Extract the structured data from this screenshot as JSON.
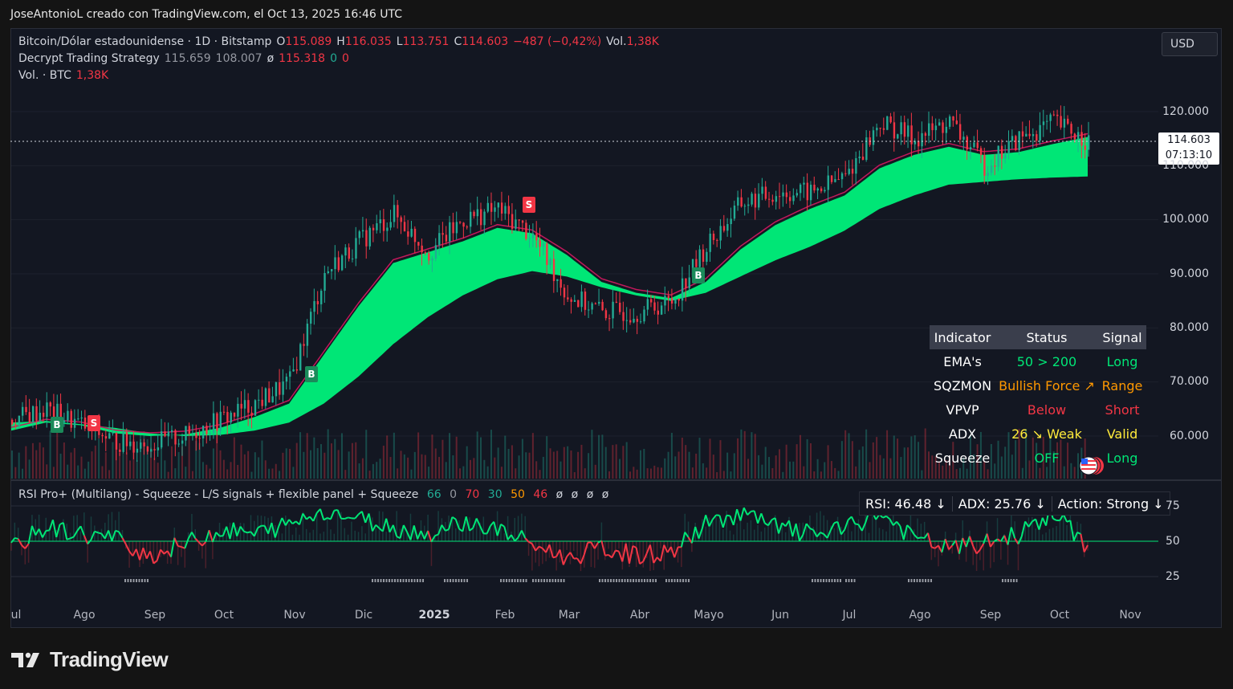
{
  "header": {
    "credit": "JoseAntonioL creado con TradingView.com, el Oct 13, 2025 16:46 UTC"
  },
  "legend": {
    "symbol": "Bitcoin/Dólar estadounidense · 1D · Bitstamp",
    "o_label": "O",
    "o_value": "115.089",
    "h_label": "H",
    "h_value": "116.035",
    "l_label": "L",
    "l_value": "113.751",
    "c_label": "C",
    "c_value": "114.603",
    "change": "−487 (−0,42%)",
    "vol_label": "Vol.",
    "vol_value": "1,38K",
    "strategy_name": "Decrypt Trading Strategy",
    "strategy_v1": "115.659",
    "strategy_v2": "108.007",
    "strategy_v3": "ø",
    "strategy_v4": "115.318",
    "strategy_v5": "0",
    "strategy_v6": "0",
    "volume_name": "Vol. · BTC",
    "volume_value": "1,38K"
  },
  "currency": "USD",
  "price_tag": {
    "price": "114.603",
    "countdown": "07:13:10"
  },
  "colors": {
    "up": "#22ab94",
    "down": "#f23645",
    "ema_fill": "#00e676",
    "ema_slow": "#c2185b",
    "background": "#131722"
  },
  "signal_panel": {
    "headers": [
      "Indicator",
      "Status",
      "Signal"
    ],
    "rows": [
      {
        "indicator": "EMA's",
        "status": "50 > 200",
        "signal": "Long",
        "status_color": "#00e676",
        "signal_color": "#00e676"
      },
      {
        "indicator": "SQZMON",
        "status": "Bullish Force ↗",
        "signal": "Range",
        "status_color": "#ff9800",
        "signal_color": "#ff9800"
      },
      {
        "indicator": "VPVP",
        "status": "Below",
        "signal": "Short",
        "status_color": "#f23645",
        "signal_color": "#f23645"
      },
      {
        "indicator": "ADX",
        "status": "26 ↘ Weak",
        "signal": "Valid",
        "status_color": "#ffeb3b",
        "signal_color": "#ffeb3b"
      },
      {
        "indicator": "Squeeze",
        "status": "OFF",
        "signal": "Long",
        "status_color": "#00e676",
        "signal_color": "#00e676"
      }
    ]
  },
  "rsi_panel": {
    "legend": "RSI Pro+ (Multilang) - Squeeze - L/S signals + flexible panel + Squeeze",
    "legend_values": [
      "66",
      "0",
      "70",
      "30",
      "50",
      "46",
      "ø",
      "ø",
      "ø",
      "ø"
    ],
    "rsi": "RSI: 46.48 ↓",
    "adx": "ADX: 25.76 ↓",
    "action": "Action: Strong ↓",
    "y_ticks": [
      "75",
      "50",
      "25"
    ]
  },
  "branding": {
    "name": "TradingView"
  },
  "chart_data": {
    "type": "line",
    "title": "Bitcoin/Dólar estadounidense · 1D · Bitstamp",
    "x_ticks": [
      "ul",
      "Ago",
      "Sep",
      "Oct",
      "Nov",
      "Dic",
      "2025",
      "Feb",
      "Mar",
      "Abr",
      "Mayo",
      "Jun",
      "Jul",
      "Ago",
      "Sep",
      "Oct",
      "Nov"
    ],
    "y_ticks": [
      "120.000",
      "110.000",
      "100.000",
      "90.000",
      "80.000",
      "70.000",
      "60.000"
    ],
    "ylim": [
      58000,
      127000
    ],
    "x": [
      "2024-07-01",
      "2024-07-15",
      "2024-08-01",
      "2024-08-15",
      "2024-09-01",
      "2024-09-15",
      "2024-10-01",
      "2024-10-15",
      "2024-11-01",
      "2024-11-15",
      "2024-12-01",
      "2024-12-15",
      "2025-01-01",
      "2025-01-15",
      "2025-02-01",
      "2025-02-15",
      "2025-03-01",
      "2025-03-15",
      "2025-04-01",
      "2025-04-15",
      "2025-05-01",
      "2025-05-15",
      "2025-06-01",
      "2025-06-15",
      "2025-07-01",
      "2025-07-15",
      "2025-08-01",
      "2025-08-15",
      "2025-09-01",
      "2025-09-15",
      "2025-10-01",
      "2025-10-13"
    ],
    "series": [
      {
        "values": [
          63000,
          65000,
          62000,
          59000,
          58500,
          60000,
          63000,
          66000,
          70000,
          90000,
          96000,
          101000,
          94000,
          100000,
          102000,
          97000,
          86000,
          83000,
          83000,
          85000,
          95000,
          103000,
          105000,
          105000,
          108000,
          118000,
          115000,
          118000,
          110000,
          115000,
          118000,
          114603
        ]
      },
      {
        "values": [
          61000,
          62500,
          62000,
          60500,
          60000,
          60300,
          61500,
          63500,
          66000,
          75000,
          84000,
          92000,
          94000,
          96000,
          98500,
          97500,
          93500,
          88500,
          86500,
          85500,
          88500,
          94500,
          99000,
          102000,
          104500,
          109500,
          112000,
          113500,
          112000,
          112500,
          114000,
          115318
        ]
      },
      {
        "values": [
          62500,
          62800,
          62200,
          61500,
          60500,
          60000,
          60200,
          61000,
          62500,
          66000,
          71000,
          77000,
          82000,
          86000,
          89000,
          90500,
          89500,
          87500,
          86000,
          85000,
          86500,
          89500,
          92500,
          95000,
          98000,
          102000,
          104500,
          106500,
          107000,
          107500,
          107800,
          108007
        ]
      }
    ],
    "rsi_values": [
      45,
      60,
      55,
      52,
      40,
      48,
      58,
      55,
      62,
      72,
      66,
      60,
      55,
      64,
      58,
      48,
      38,
      45,
      40,
      42,
      62,
      70,
      60,
      55,
      58,
      70,
      52,
      45,
      48,
      55,
      70,
      46
    ]
  }
}
